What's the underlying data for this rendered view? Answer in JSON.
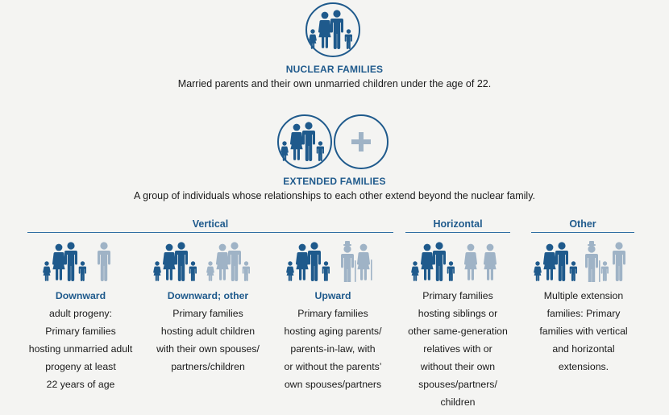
{
  "colors": {
    "primary": "#1f5a8c",
    "secondary": "#9fb3c6",
    "background": "#f4f4f2"
  },
  "nuclear": {
    "icon": "nuclear-family-icon",
    "title": "NUCLEAR FAMILIES",
    "description": "Married parents and their own unmarried children under the age of 22."
  },
  "extended": {
    "icon": "extended-family-icon",
    "plus_icon": "plus-icon",
    "title": "EXTENDED FAMILIES",
    "description": "A group of individuals whose relationships to each other extend beyond the nuclear family."
  },
  "groups": {
    "vertical": "Vertical",
    "horizontal": "Horizontal",
    "other": "Other"
  },
  "columns": [
    {
      "label": "Downward",
      "lines": [
        "adult progeny:",
        "Primary families",
        "hosting unmarried adult",
        "progeny at least",
        "22 years of age"
      ]
    },
    {
      "label": "Downward; other",
      "lines": [
        "Primary families",
        "hosting adult children",
        "with their own spouses/",
        "partners/children"
      ]
    },
    {
      "label": "Upward",
      "lines": [
        "Primary families",
        "hosting aging parents/",
        "parents-in-law, with",
        "or without the parents’",
        "own spouses/partners"
      ]
    },
    {
      "label": "",
      "lines": [
        "Primary families",
        "hosting siblings or",
        "other same-generation",
        "relatives with or",
        "without their own",
        "spouses/partners/",
        "children"
      ]
    },
    {
      "label": "",
      "lines": [
        "Multiple extension",
        "families: Primary",
        "families with vertical",
        "and horizontal",
        "extensions."
      ]
    }
  ]
}
